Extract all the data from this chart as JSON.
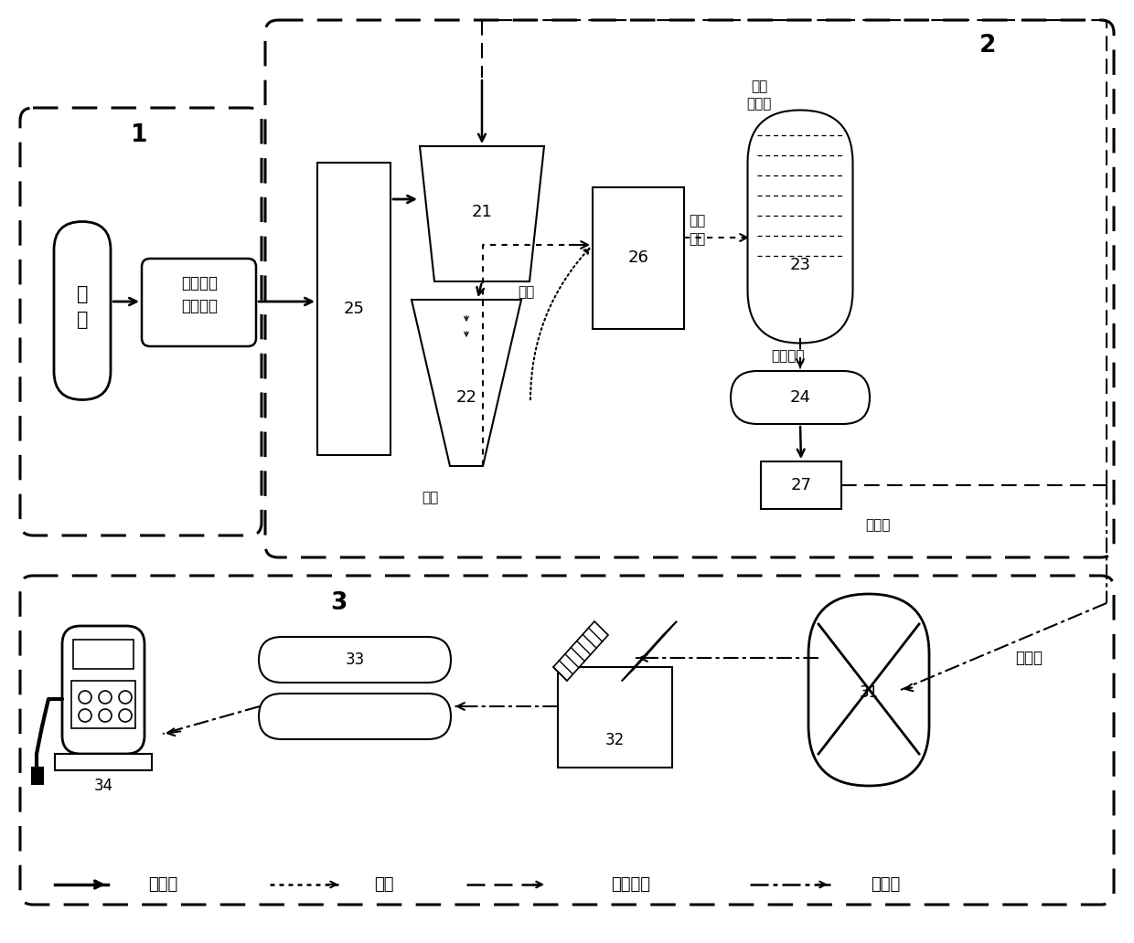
{
  "components": {
    "box1_label": "1",
    "box2_label": "2",
    "box3_label": "3",
    "labels": {
      "wind": "风能",
      "gen": "永磁直驱\n风电机组",
      "lv_ye": "铝液",
      "lv_fen": "铝粉",
      "lv_fen2": "铝粉",
      "shuyan": "输运",
      "yanghua_lv_top": "输运",
      "yanghua_lv2": "氧化铝",
      "lvfen_shuyan": "铝粉\n输运",
      "qing_yang": "氢氧化铝",
      "yang_hua_lv": "氧化铝",
      "cu_qing": "粗氢气"
    },
    "legend": [
      "能量流",
      "铝流",
      "氧化铝流",
      "氢气流"
    ]
  }
}
